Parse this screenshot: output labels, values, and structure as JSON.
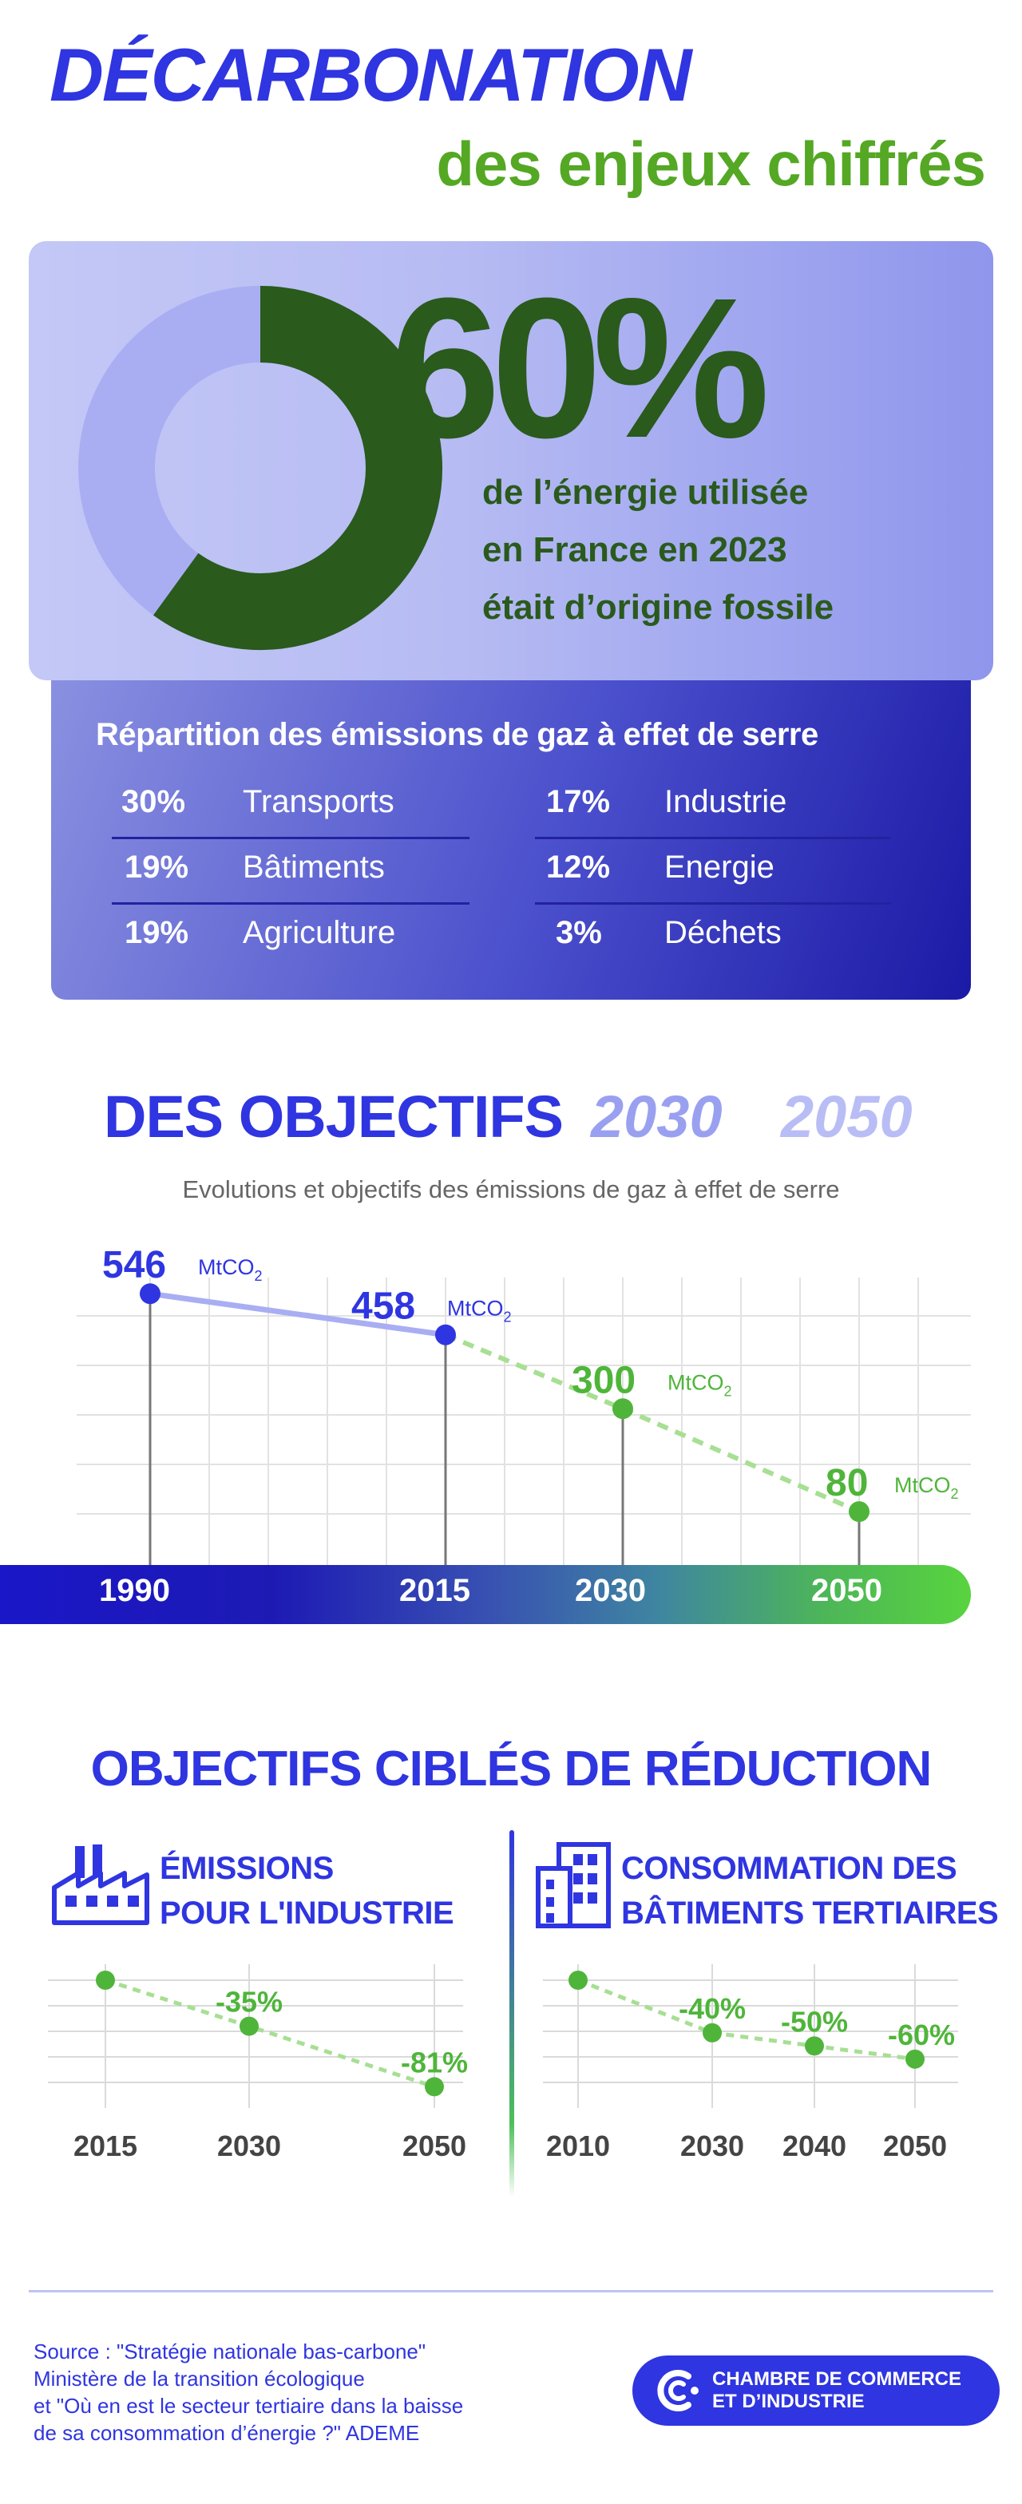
{
  "header": {
    "title": "DÉCARBONATION",
    "subtitle": "des enjeux chiffrés"
  },
  "hero": {
    "value": "60%",
    "fraction": 0.6,
    "lines": [
      "de l’énergie utilisée",
      "en France en 2023",
      "était d’origine fossile"
    ],
    "colors": {
      "fossil": "#2a5a1c",
      "rest": "#a9aef3"
    }
  },
  "repartition": {
    "title": "Répartition des émissions de gaz à effet de serre",
    "items": [
      {
        "pct": "30%",
        "label": "Transports"
      },
      {
        "pct": "19%",
        "label": "Bâtiments"
      },
      {
        "pct": "19%",
        "label": "Agriculture"
      },
      {
        "pct": "17%",
        "label": "Industrie"
      },
      {
        "pct": "12%",
        "label": "Energie"
      },
      {
        "pct": "3%",
        "label": "Déchets"
      }
    ]
  },
  "objectifs": {
    "title": "DES OBJECTIFS",
    "year1": "2030",
    "year2": "2050",
    "subtitle": "Evolutions et objectifs des émissions de gaz à effet de serre",
    "unit": "MtCO",
    "unit_sub": "2"
  },
  "chart_data": [
    {
      "type": "line",
      "x": [
        "1990",
        "2015",
        "2030",
        "2050"
      ],
      "y": [
        546,
        458,
        300,
        80
      ],
      "labels": [
        "546",
        "458",
        "300",
        "80"
      ],
      "unit": "MtCO2",
      "segments": [
        "historique",
        "historique",
        "objectif",
        "objectif"
      ]
    },
    {
      "type": "line",
      "x": [
        "2015",
        "2030",
        "2050"
      ],
      "y": [
        0,
        -35,
        -81
      ],
      "labels": [
        "",
        "-35%",
        "-81%"
      ]
    },
    {
      "type": "line",
      "x": [
        "2010",
        "2030",
        "2040",
        "2050"
      ],
      "y": [
        0,
        -40,
        -50,
        -60
      ],
      "labels": [
        "",
        "-40%",
        "-50%",
        "-60%"
      ]
    }
  ],
  "reduction": {
    "title": "OBJECTIFS CIBLÉS DE RÉDUCTION",
    "industry": {
      "line1": "ÉMISSIONS",
      "line2": "POUR L'INDUSTRIE",
      "icon": "factory-icon"
    },
    "buildings": {
      "line1": "CONSOMMATION DES",
      "line2": "BÂTIMENTS TERTIAIRES",
      "icon": "building-icon"
    }
  },
  "footer": {
    "source_lines": [
      "Source :  \"Stratégie nationale bas-carbone\"",
      "Ministère de la transition écologique",
      "et \"Où en est le secteur tertiaire dans la baisse",
      "de sa consommation d’énergie ?\" ADEME"
    ],
    "cci_line1": "CHAMBRE DE COMMERCE",
    "cci_line2": "ET D’INDUSTRIE"
  },
  "colors": {
    "blue": "#2f35e0",
    "green": "#54a824",
    "lightblue": "#a9aef3"
  }
}
